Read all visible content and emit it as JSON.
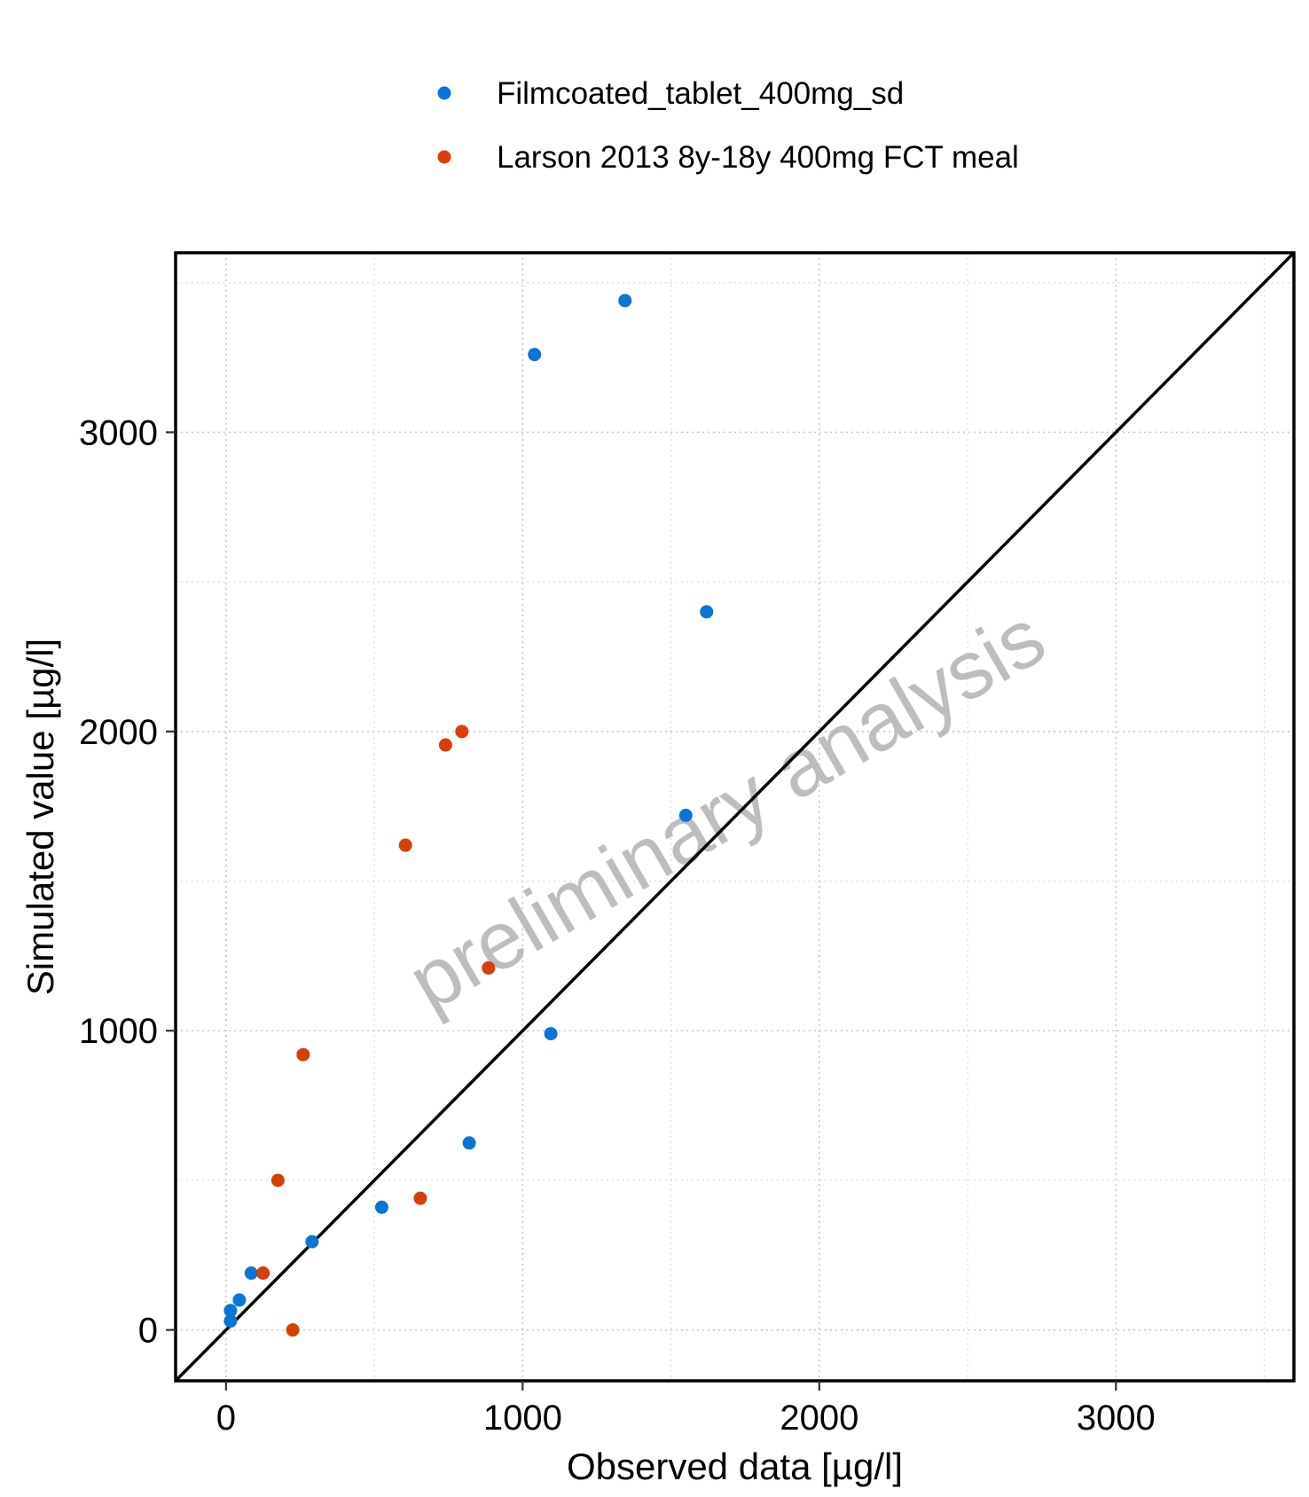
{
  "chart_data": {
    "type": "scatter",
    "title": "",
    "xlabel": "Observed data [µg/l]",
    "ylabel": "Simulated value [µg/l]",
    "xlim": [
      -170,
      3600
    ],
    "ylim": [
      -170,
      3600
    ],
    "x_ticks": [
      0,
      1000,
      2000,
      3000
    ],
    "y_ticks": [
      0,
      1000,
      2000,
      3000
    ],
    "x_tick_labels": [
      "0",
      "1000",
      "2000",
      "3000"
    ],
    "y_tick_labels": [
      "0",
      "1000",
      "2000",
      "3000"
    ],
    "grid": true,
    "legend_position": "top",
    "reference_line": "identity",
    "watermark": "preliminary analysis",
    "series": [
      {
        "name": "Filmcoated_tablet_400mg_sd",
        "color": "#0a75d6",
        "points": [
          {
            "x": 1345,
            "y": 3440
          },
          {
            "x": 1040,
            "y": 3260
          },
          {
            "x": 1620,
            "y": 2400
          },
          {
            "x": 1550,
            "y": 1720
          },
          {
            "x": 1095,
            "y": 990
          },
          {
            "x": 820,
            "y": 625
          },
          {
            "x": 525,
            "y": 410
          },
          {
            "x": 290,
            "y": 295
          },
          {
            "x": 85,
            "y": 190
          },
          {
            "x": 45,
            "y": 100
          },
          {
            "x": 15,
            "y": 65
          },
          {
            "x": 15,
            "y": 30
          }
        ]
      },
      {
        "name": "Larson 2013 8y-18y 400mg FCT meal",
        "color": "#d63f0a",
        "points": [
          {
            "x": 795,
            "y": 2000
          },
          {
            "x": 740,
            "y": 1955
          },
          {
            "x": 605,
            "y": 1620
          },
          {
            "x": 885,
            "y": 1210
          },
          {
            "x": 260,
            "y": 920
          },
          {
            "x": 175,
            "y": 500
          },
          {
            "x": 655,
            "y": 440
          },
          {
            "x": 125,
            "y": 190
          },
          {
            "x": 225,
            "y": 0
          }
        ]
      }
    ]
  }
}
